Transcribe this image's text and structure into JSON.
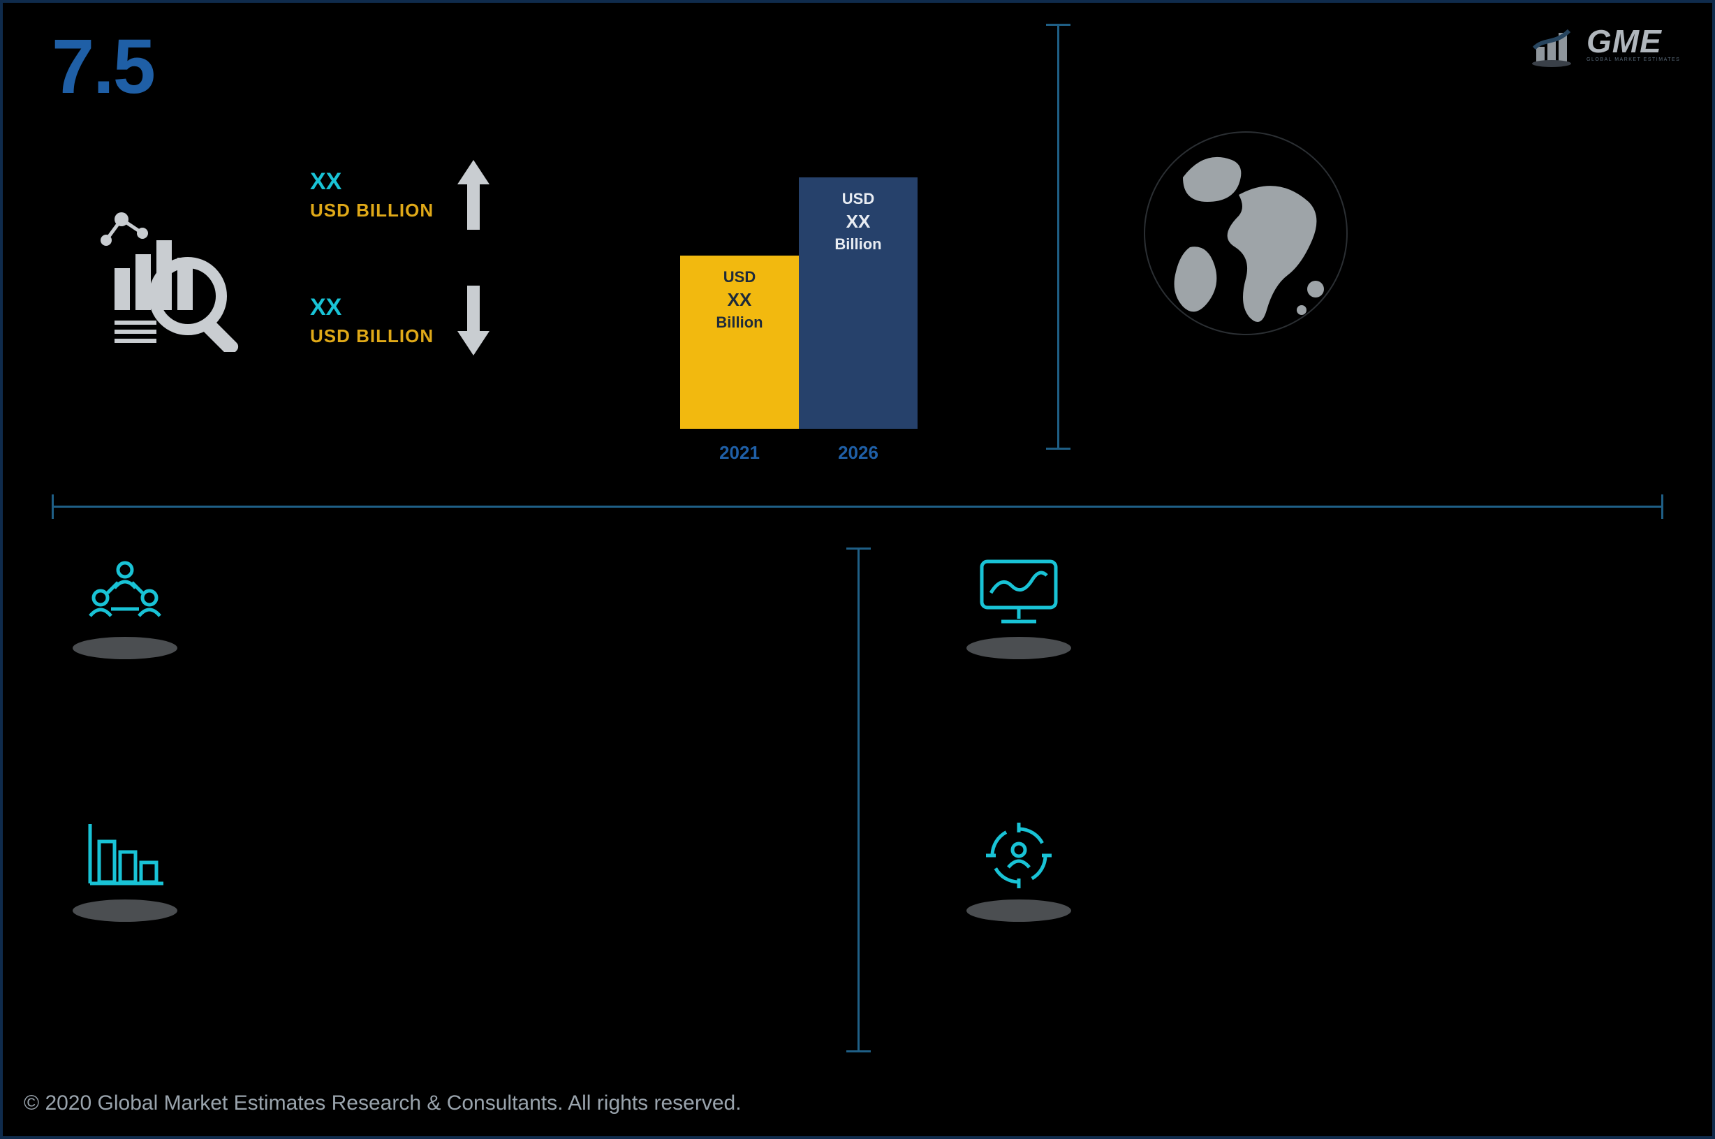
{
  "colors": {
    "bg": "#000000",
    "frame_border": "#0f2b4c",
    "headline": "#1f5fa6",
    "cyan": "#19c3d6",
    "gold": "#e0a918",
    "bar1_fill": "#f2b90f",
    "bar1_text": "#1e2a3a",
    "bar2_fill": "#26416b",
    "bar2_text": "#e8ecf2",
    "xlabel": "#1f5fa6",
    "divider": "#1f5f86",
    "globe_fill": "#9ea4a8",
    "icon_grey": "#c9cdd1",
    "icon_cyan": "#19c3d6",
    "shadow": "#4b4e51",
    "arrow": "#c9cdd1",
    "copyright": "#9aa4ad",
    "logo_grey": "#b0b6bc",
    "logo_sub": "#5a6a7a"
  },
  "headline": {
    "value": "7.5",
    "fontsize": 110,
    "fontweight": 800
  },
  "logo": {
    "text": "GME",
    "sub": "GLOBAL MARKET ESTIMATES"
  },
  "stats": {
    "up": {
      "xx": "XX",
      "label": "USD BILLION"
    },
    "down": {
      "xx": "XX",
      "label": "USD BILLION"
    }
  },
  "mini_chart": {
    "type": "bar",
    "x_fontsize": 26,
    "bars": [
      {
        "year": "2021",
        "currency": "USD",
        "value": "XX",
        "unit": "Billion",
        "height_pct": 62,
        "fill_key": "bar1_fill",
        "text_key": "bar1_text"
      },
      {
        "year": "2026",
        "currency": "USD",
        "value": "XX",
        "unit": "Billion",
        "height_pct": 90,
        "fill_key": "bar2_fill",
        "text_key": "bar2_text"
      }
    ]
  },
  "quads": {
    "tl": {
      "icon": "people-network-icon"
    },
    "tr": {
      "icon": "monitor-trend-icon"
    },
    "bl": {
      "icon": "bar-chart-icon"
    },
    "br": {
      "icon": "crosshair-user-icon"
    }
  },
  "copyright": "© 2020 Global Market Estimates Research & Consultants. All rights reserved."
}
